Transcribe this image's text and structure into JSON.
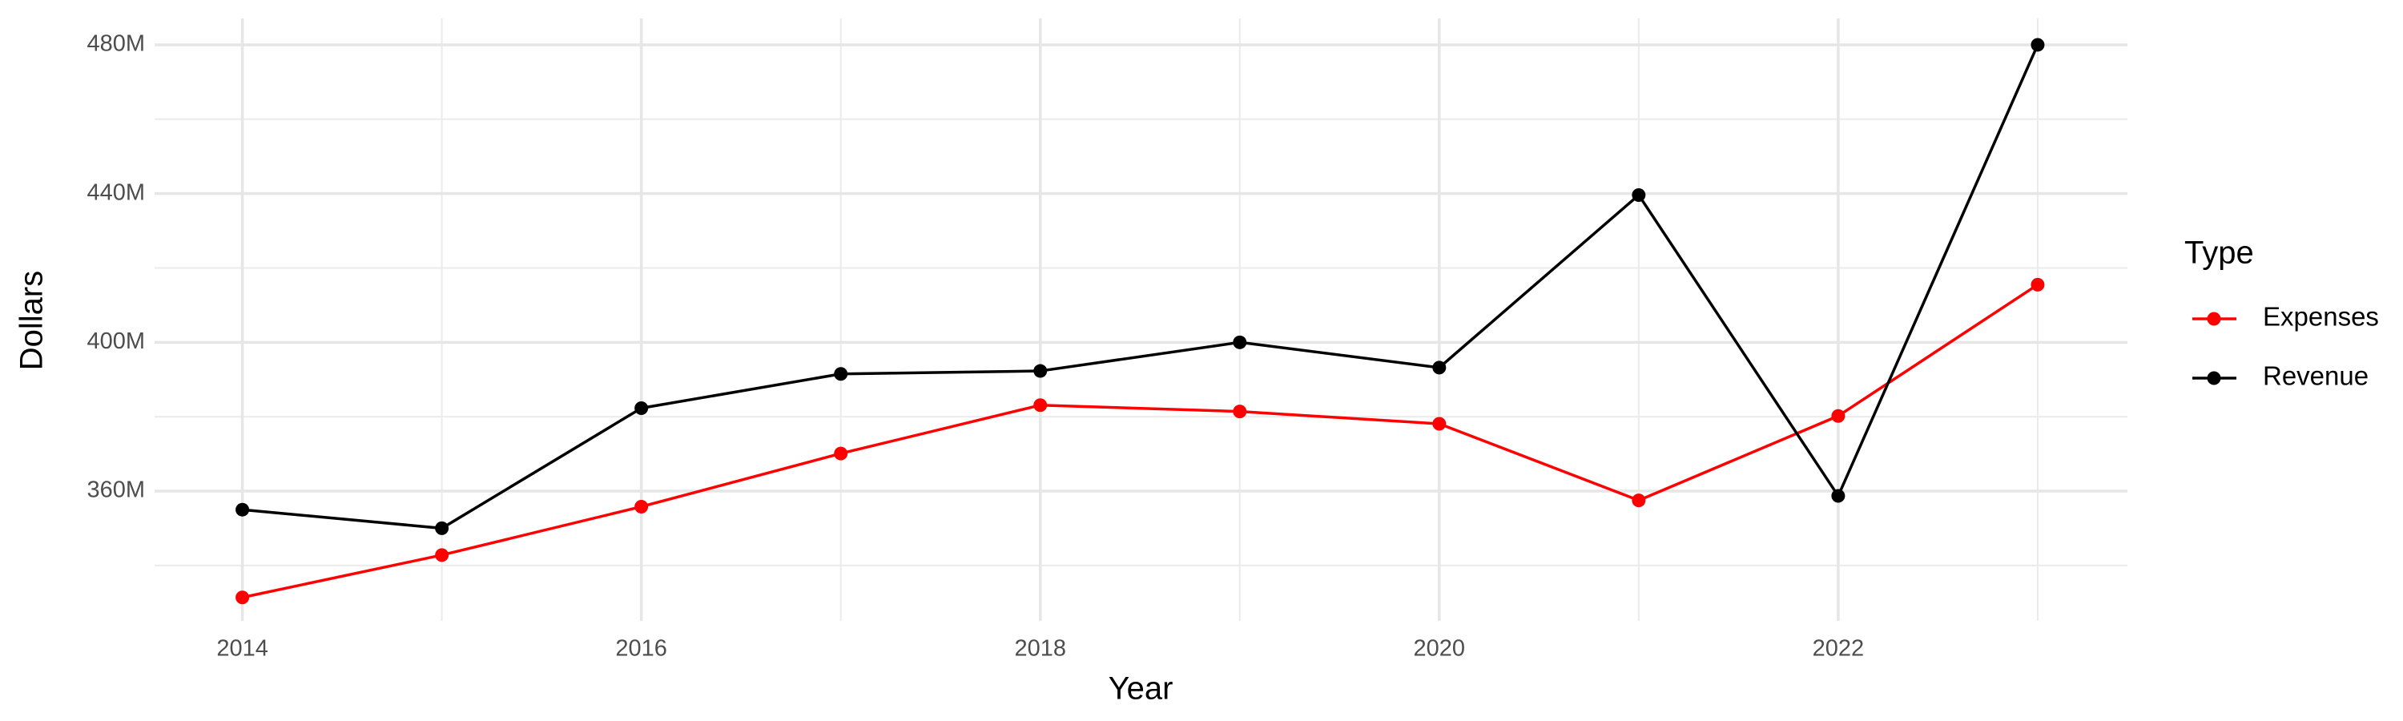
{
  "chart_data": {
    "type": "line",
    "x_label": "Year",
    "y_label": "Dollars",
    "legend_title": "Type",
    "x": [
      2014,
      2015,
      2016,
      2017,
      2018,
      2019,
      2020,
      2021,
      2022,
      2023
    ],
    "series": [
      {
        "name": "Expenses",
        "color": "#ff0000",
        "values": [
          331400000,
          342800000,
          355800000,
          370100000,
          383100000,
          381400000,
          378100000,
          357500000,
          380200000,
          415500000
        ]
      },
      {
        "name": "Revenue",
        "color": "#000000",
        "values": [
          355000000,
          350000000,
          382300000,
          391500000,
          392300000,
          400000000,
          393200000,
          439600000,
          358700000,
          480000000
        ]
      }
    ],
    "xlim": [
      2013.56,
      2023.45
    ],
    "xticks": [
      2014,
      2016,
      2018,
      2020,
      2022
    ],
    "xminor": [
      2015,
      2017,
      2019,
      2021,
      2023
    ],
    "ylim": [
      325100000,
      487100000
    ],
    "yticks": [
      {
        "value": 360000000,
        "label": "360M"
      },
      {
        "value": 400000000,
        "label": "400M"
      },
      {
        "value": 440000000,
        "label": "440M"
      },
      {
        "value": 480000000,
        "label": "480M"
      }
    ],
    "yminor": [
      340000000,
      380000000,
      420000000,
      460000000
    ],
    "grid": true,
    "legend_position": "right"
  }
}
